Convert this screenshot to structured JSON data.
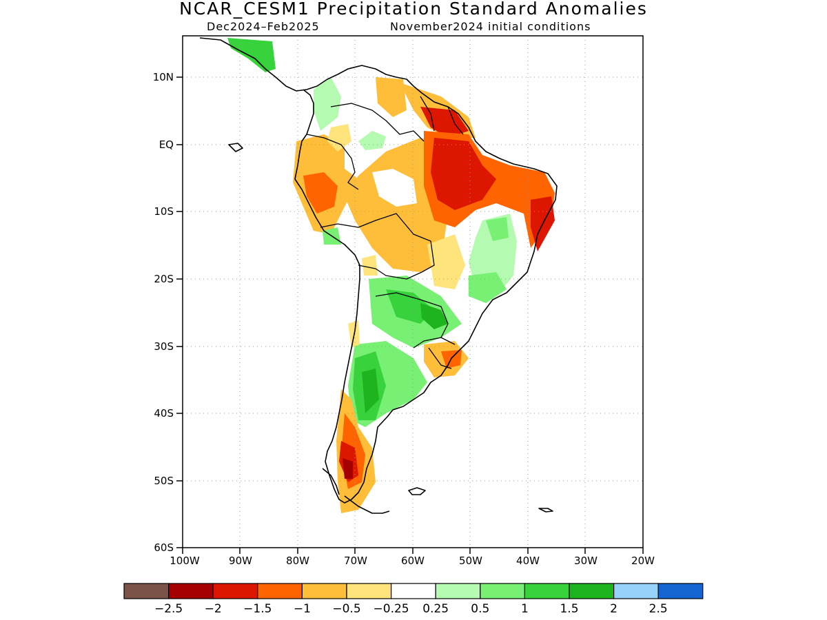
{
  "header": {
    "title": "NCAR_CESM1 Precipitation Standard Anomalies",
    "period": "Dec2024–Feb2025",
    "initial_conditions": "November2024 initial conditions"
  },
  "map": {
    "region": "South America",
    "lon_range": [
      -100,
      -20
    ],
    "lat_range": [
      -60,
      16
    ],
    "lat_tick_labels": [
      "10N",
      "EQ",
      "10S",
      "20S",
      "30S",
      "40S",
      "50S",
      "60S"
    ],
    "lon_tick_labels": [
      "100W",
      "90W",
      "80W",
      "70W",
      "60W",
      "50W",
      "40W",
      "30W",
      "20W"
    ],
    "grid": true
  },
  "colorbar": {
    "colors": [
      "#7b5347",
      "#a50000",
      "#dd1600",
      "#ff6400",
      "#ffbe3a",
      "#ffe47c",
      "#ffffff",
      "#b4fab0",
      "#78f073",
      "#37d23c",
      "#1eb41e",
      "#96d2fa",
      "#1464d2"
    ],
    "labels": [
      "−2.5",
      "−2",
      "−1.5",
      "−1",
      "−0.5",
      "−0.25",
      "0.25",
      "0.5",
      "1",
      "1.5",
      "2",
      "2.5"
    ]
  }
}
